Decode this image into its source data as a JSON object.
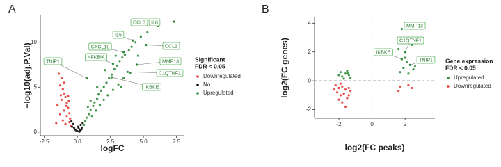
{
  "chart_data": [
    {
      "type": "scatter",
      "panel": "A",
      "x_label": "logFC",
      "y_label": "−log10(adj.P.Val)",
      "xlim": [
        -2.8,
        8.1
      ],
      "ylim": [
        -0.4,
        13
      ],
      "xticks": [
        {
          "value": -2.5,
          "label": "-2.5"
        },
        {
          "value": 0,
          "label": "0.0"
        },
        {
          "value": 2.5,
          "label": "2.5"
        },
        {
          "value": 5,
          "label": "5.0"
        },
        {
          "value": 7.5,
          "label": "7.5"
        }
      ],
      "yticks": [
        0,
        5,
        10
      ],
      "legend_title": [
        "Significant",
        "FDR < 0.05"
      ],
      "series": [
        {
          "name": "Downregulated",
          "color": "#e53935",
          "x": [
            -1.4,
            -1.2,
            -1.3,
            -1.1,
            -1.0,
            -0.9,
            -1.2,
            -0.8,
            -1.5,
            -0.7,
            -1.0,
            -0.6,
            -1.3,
            -0.8,
            -0.55,
            -1.1,
            -0.6,
            -0.9,
            -0.5,
            -1.6,
            -0.7,
            -1.0,
            -0.85,
            -1.25,
            -0.65
          ],
          "values": [
            6.5,
            6.0,
            5.2,
            4.8,
            4.3,
            3.9,
            3.6,
            3.2,
            3.0,
            2.7,
            2.4,
            2.1,
            2.0,
            1.8,
            1.5,
            1.3,
            1.1,
            0.9,
            0.7,
            1.0,
            4.0,
            5.5,
            2.9,
            4.1,
            3.5
          ]
        },
        {
          "name": "No",
          "color": "#111111",
          "x": [
            -0.4,
            -0.2,
            0,
            0.2,
            0.35,
            -0.3,
            0.1,
            0.25,
            -0.1,
            0.05,
            -0.45,
            0.4,
            0.15,
            -0.25,
            0.3
          ],
          "values": [
            0.6,
            0.3,
            0.1,
            0.2,
            0.5,
            0.9,
            0.4,
            0.8,
            0.2,
            0.6,
            1.2,
            1.0,
            0.05,
            0.5,
            0.3
          ]
        },
        {
          "name": "Upregulated",
          "color": "#2e8b3a",
          "x": [
            0.5,
            0.6,
            0.7,
            0.9,
            1.0,
            1.2,
            1.3,
            1.5,
            1.6,
            1.8,
            2.0,
            2.2,
            2.4,
            2.6,
            2.8,
            3.0,
            3.2,
            3.4,
            3.6,
            3.9,
            4.1,
            4.4,
            4.8,
            5.3,
            1.1,
            1.4,
            1.7,
            2.0,
            2.3,
            2.7,
            3.1,
            3.5,
            4.0,
            1.0,
            1.5,
            2.1,
            2.9,
            0.8,
            3.3,
            4.6
          ],
          "values": [
            0.8,
            1.2,
            1.6,
            2.0,
            2.5,
            2.9,
            3.3,
            3.7,
            4.2,
            4.6,
            5.0,
            5.5,
            6.0,
            6.4,
            7.0,
            7.4,
            7.9,
            8.3,
            8.6,
            9.1,
            9.5,
            10.0,
            10.6,
            11.1,
            1.8,
            2.4,
            3.0,
            3.6,
            4.1,
            4.7,
            5.3,
            6.0,
            6.6,
            3.5,
            5.0,
            6.9,
            8.5,
            2.8,
            5.0,
            8.5
          ]
        }
      ],
      "annotations": [
        {
          "label": "CCL8",
          "x": 6.1,
          "y": 11.8
        },
        {
          "label": "IL8",
          "x": 7.3,
          "y": 12.3
        },
        {
          "label": "IL6",
          "x": 4.2,
          "y": 10.2
        },
        {
          "label": "CCL2",
          "x": 5.2,
          "y": 9.7
        },
        {
          "label": "CXCL10",
          "x": 3.5,
          "y": 8.9
        },
        {
          "label": "NFKBIA",
          "x": 2.7,
          "y": 7.6
        },
        {
          "label": "MMP13",
          "x": 4.5,
          "y": 7.5
        },
        {
          "label": "C1QTNF1",
          "x": 3.8,
          "y": 6.7
        },
        {
          "label": "TNIP1",
          "x": 0.7,
          "y": 6.0
        },
        {
          "label": "IKBKE",
          "x": 2.6,
          "y": 6.1
        }
      ]
    },
    {
      "type": "scatter",
      "panel": "B",
      "x_label": "log2(FC peaks)",
      "y_label": "log2(FC genes)",
      "xlim": [
        -3.47,
        3.8
      ],
      "ylim": [
        -2.6,
        4.4
      ],
      "xticks": [
        -2,
        0,
        2
      ],
      "yticks": [
        -2,
        0,
        2,
        4
      ],
      "reference_lines": {
        "x": 0,
        "y": 0
      },
      "legend_title": [
        "Gene expression",
        "FDR < 0.05"
      ],
      "series": [
        {
          "name": "Upregulated",
          "color": "#2e8b3a",
          "x": [
            -1.8,
            -1.6,
            -1.4,
            -1.9,
            -1.5,
            -1.3,
            -1.7,
            -2.0,
            -1.45,
            1.7,
            1.9,
            2.1,
            1.8,
            2.6,
            2.2,
            1.6,
            2.4,
            2.0,
            2.5
          ],
          "values": [
            0.3,
            0.5,
            0.4,
            0.6,
            0.7,
            0.2,
            0.15,
            0.4,
            0.55,
            0.6,
            0.9,
            1.3,
            3.6,
            1.0,
            0.5,
            2.2,
            2.5,
            1.6,
            0.8
          ]
        },
        {
          "name": "Downregulated",
          "color": "#e53935",
          "x": [
            -2.2,
            -2.0,
            -1.8,
            -1.6,
            -1.4,
            -2.1,
            -1.9,
            -1.7,
            -1.5,
            -2.3,
            -1.3,
            -1.8,
            -1.6,
            -2.0,
            -1.4,
            -1.9,
            1.7,
            2.2,
            1.6,
            2.4
          ],
          "values": [
            -0.3,
            -0.5,
            -0.4,
            -0.6,
            -0.5,
            -0.8,
            -1.0,
            -0.9,
            -1.2,
            -0.6,
            -0.7,
            -1.5,
            -1.8,
            -1.3,
            -1.0,
            -0.2,
            -0.4,
            -0.3,
            -0.7,
            -0.5
          ]
        }
      ],
      "annotations": [
        {
          "label": "MMP13",
          "x": 2.7,
          "y": 3.8
        },
        {
          "label": "C1QTNF1",
          "x": 2.0,
          "y": 2.0
        },
        {
          "label": "IKBKE",
          "x": 1.8,
          "y": 1.5
        },
        {
          "label": "TNIP1",
          "x": 2.3,
          "y": 1.1
        }
      ]
    }
  ]
}
